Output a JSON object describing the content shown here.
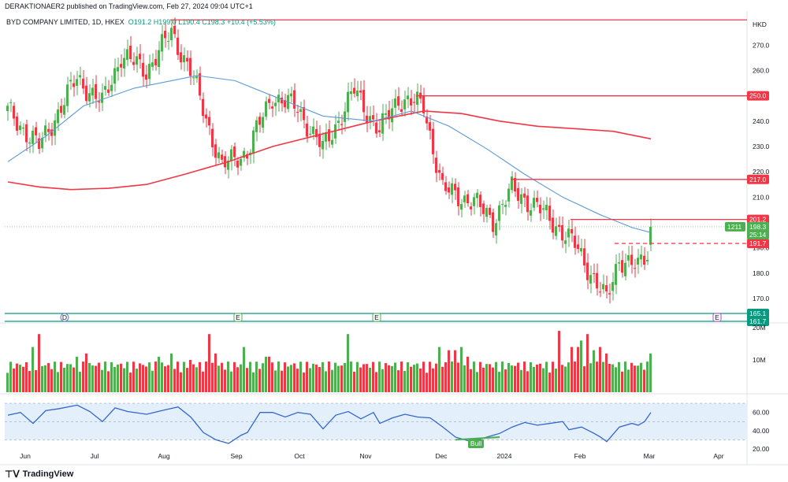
{
  "header": {
    "published": "DERAKTIONAER2 published on TradingView.com, Feb 27, 2024 09:04 UTC+1",
    "symbol": "BYD COMPANY LIMITED, 1D, HKEX",
    "ohlc": "O191.2 H199.0 L190.4 C198.3 +10.4 (+5.53%)"
  },
  "footer": {
    "brand": "TradingView",
    "logo_icon": "tradingview-logo-icon"
  },
  "colors": {
    "up": "#4caf50",
    "down": "#f23645",
    "ma_fast": "#5b9bd5",
    "ma_slow": "#f23645",
    "level": "#f23645",
    "support": "#089981",
    "rsi": "#3366cc",
    "rsi_band": "#e3effb"
  },
  "chart_data": [
    {
      "type": "candlestick",
      "currency": "HKD",
      "y_ticks": [
        "270.0",
        "260.0",
        "250.0",
        "240.0",
        "230.0",
        "220.0",
        "210.0",
        "200.0",
        "190.0",
        "180.0",
        "170.0"
      ],
      "x_ticks": [
        "Jun",
        "Jul",
        "Aug",
        "Sep",
        "Oct",
        "Nov",
        "Dec",
        "2024",
        "Feb",
        "Mar",
        "Apr"
      ],
      "ylim": [
        165,
        281
      ],
      "start_close": 244,
      "anchors": [
        {
          "bar": 0,
          "close": 244
        },
        {
          "bar": 10,
          "close": 230
        },
        {
          "bar": 22,
          "close": 257
        },
        {
          "bar": 30,
          "close": 247
        },
        {
          "bar": 36,
          "close": 266
        },
        {
          "bar": 44,
          "close": 260
        },
        {
          "bar": 52,
          "close": 275
        },
        {
          "bar": 58,
          "close": 260
        },
        {
          "bar": 68,
          "close": 222
        },
        {
          "bar": 76,
          "close": 228
        },
        {
          "bar": 84,
          "close": 250
        },
        {
          "bar": 92,
          "close": 245
        },
        {
          "bar": 100,
          "close": 229
        },
        {
          "bar": 110,
          "close": 252
        },
        {
          "bar": 118,
          "close": 236
        },
        {
          "bar": 124,
          "close": 249
        },
        {
          "bar": 132,
          "close": 246
        },
        {
          "bar": 138,
          "close": 213
        },
        {
          "bar": 148,
          "close": 208
        },
        {
          "bar": 154,
          "close": 201
        },
        {
          "bar": 160,
          "close": 213
        },
        {
          "bar": 168,
          "close": 206
        },
        {
          "bar": 174,
          "close": 199
        },
        {
          "bar": 180,
          "close": 191
        },
        {
          "bar": 186,
          "close": 178
        },
        {
          "bar": 190,
          "close": 169
        },
        {
          "bar": 194,
          "close": 186
        },
        {
          "bar": 200,
          "close": 182
        },
        {
          "bar": 203,
          "close": 188
        },
        {
          "bar": 204,
          "close": 198.3
        }
      ],
      "ma_fast": [
        [
          0,
          224
        ],
        [
          12,
          234
        ],
        [
          24,
          246
        ],
        [
          40,
          253
        ],
        [
          60,
          258
        ],
        [
          72,
          256
        ],
        [
          84,
          250
        ],
        [
          100,
          242
        ],
        [
          116,
          240
        ],
        [
          128,
          244
        ],
        [
          140,
          238
        ],
        [
          152,
          229
        ],
        [
          164,
          219
        ],
        [
          176,
          210
        ],
        [
          188,
          203
        ],
        [
          198,
          198
        ],
        [
          204,
          196
        ]
      ],
      "ma_slow": [
        [
          0,
          216
        ],
        [
          10,
          214
        ],
        [
          20,
          213
        ],
        [
          32,
          213.5
        ],
        [
          44,
          215
        ],
        [
          56,
          219
        ],
        [
          70,
          224
        ],
        [
          84,
          230
        ],
        [
          100,
          235
        ],
        [
          116,
          240
        ],
        [
          132,
          244
        ],
        [
          144,
          243
        ],
        [
          156,
          240
        ],
        [
          168,
          238
        ],
        [
          180,
          237
        ],
        [
          192,
          236
        ],
        [
          204,
          233
        ]
      ],
      "levels": [
        {
          "label": "",
          "value": 280,
          "from_bar": 52
        },
        {
          "label": "250.0",
          "value": 250,
          "from_bar": 130
        },
        {
          "label": "217.0",
          "value": 217,
          "from_bar": 160
        },
        {
          "label": "201.2",
          "value": 201.2,
          "from_bar": 179
        },
        {
          "label": "191.7",
          "value": 191.7,
          "from_bar": 193,
          "dashed": true
        }
      ],
      "support_levels": [
        {
          "label": "165.1",
          "value": 165.1
        },
        {
          "label": "161.7",
          "value": 161.7
        }
      ],
      "price_tag": {
        "volume": "1211",
        "price": "198.3",
        "countdown": "25:14"
      },
      "event_markers": [
        {
          "label": "D",
          "bar": 18
        },
        {
          "label": "E",
          "bar": 73
        },
        {
          "label": "E",
          "bar": 117
        },
        {
          "label": "E",
          "bar": 225
        }
      ]
    },
    {
      "type": "bar",
      "name": "Volume",
      "y_ticks": [
        "20M",
        "10M"
      ],
      "ylim": [
        0,
        20
      ],
      "base": 6,
      "spikes": [
        [
          8,
          14
        ],
        [
          10,
          18
        ],
        [
          22,
          11
        ],
        [
          25,
          12
        ],
        [
          48,
          11
        ],
        [
          52,
          12
        ],
        [
          58,
          10
        ],
        [
          64,
          18
        ],
        [
          66,
          12
        ],
        [
          75,
          14
        ],
        [
          82,
          11
        ],
        [
          83,
          11
        ],
        [
          108,
          18
        ],
        [
          137,
          14
        ],
        [
          140,
          13
        ],
        [
          142,
          13
        ],
        [
          144,
          14
        ],
        [
          146,
          11
        ],
        [
          175,
          19
        ],
        [
          179,
          14
        ],
        [
          181,
          14
        ],
        [
          182,
          16
        ],
        [
          184,
          18
        ],
        [
          186,
          13
        ],
        [
          188,
          14
        ],
        [
          190,
          12
        ],
        [
          204,
          12
        ]
      ]
    },
    {
      "type": "line",
      "name": "RSI",
      "y_ticks": [
        "60.00",
        "40.00",
        "20.00"
      ],
      "ylim": [
        20,
        77
      ],
      "band": [
        30,
        70
      ],
      "divergence_label": "Bull",
      "points": [
        [
          0,
          57
        ],
        [
          4,
          60
        ],
        [
          8,
          48
        ],
        [
          12,
          62
        ],
        [
          16,
          64
        ],
        [
          22,
          68
        ],
        [
          26,
          61
        ],
        [
          30,
          50
        ],
        [
          34,
          65
        ],
        [
          38,
          61
        ],
        [
          44,
          58
        ],
        [
          50,
          63
        ],
        [
          54,
          66
        ],
        [
          58,
          55
        ],
        [
          62,
          38
        ],
        [
          66,
          30
        ],
        [
          70,
          26
        ],
        [
          74,
          35
        ],
        [
          76,
          38
        ],
        [
          80,
          60
        ],
        [
          84,
          60
        ],
        [
          88,
          55
        ],
        [
          92,
          60
        ],
        [
          96,
          58
        ],
        [
          100,
          42
        ],
        [
          104,
          57
        ],
        [
          108,
          61
        ],
        [
          112,
          53
        ],
        [
          116,
          60
        ],
        [
          118,
          48
        ],
        [
          122,
          54
        ],
        [
          126,
          58
        ],
        [
          130,
          55
        ],
        [
          134,
          54
        ],
        [
          138,
          44
        ],
        [
          142,
          33
        ],
        [
          146,
          29
        ],
        [
          150,
          31
        ],
        [
          154,
          35
        ],
        [
          156,
          37
        ],
        [
          160,
          44
        ],
        [
          164,
          49
        ],
        [
          168,
          46
        ],
        [
          172,
          48
        ],
        [
          176,
          50
        ],
        [
          178,
          41
        ],
        [
          182,
          44
        ],
        [
          186,
          37
        ],
        [
          188,
          33
        ],
        [
          190,
          28
        ],
        [
          194,
          44
        ],
        [
          198,
          48
        ],
        [
          200,
          46
        ],
        [
          202,
          50
        ],
        [
          204,
          60
        ]
      ]
    }
  ]
}
